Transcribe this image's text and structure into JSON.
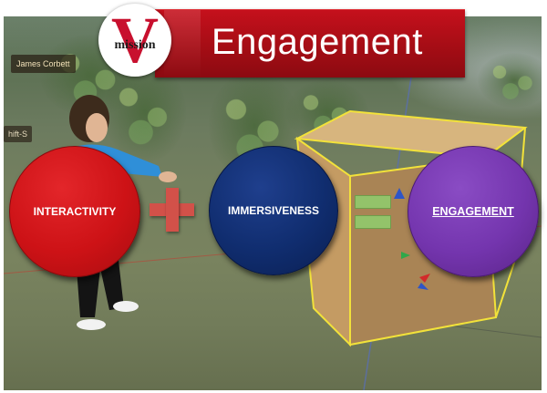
{
  "viewer": {
    "avatar_name": "James Corbett",
    "second_nametag": "hift-S"
  },
  "header": {
    "logo": {
      "text": "mission",
      "letter": "V",
      "icon": "mission-v-logo"
    },
    "title": "Engagement"
  },
  "equation": {
    "term1": {
      "label": "INTERACTIVITY",
      "color": "#cd1216"
    },
    "operator_plus": "+",
    "term2": {
      "label": "IMMERSIVENESS",
      "color": "#102d6f"
    },
    "operator_equals": "=",
    "result": {
      "label": "ENGAGEMENT",
      "color": "#7435ae",
      "underlined": true
    }
  },
  "colors": {
    "banner_red": "#a50d15",
    "plus_red": "#d25149",
    "equals_green": "#93c36a",
    "ground": "#79835f"
  }
}
